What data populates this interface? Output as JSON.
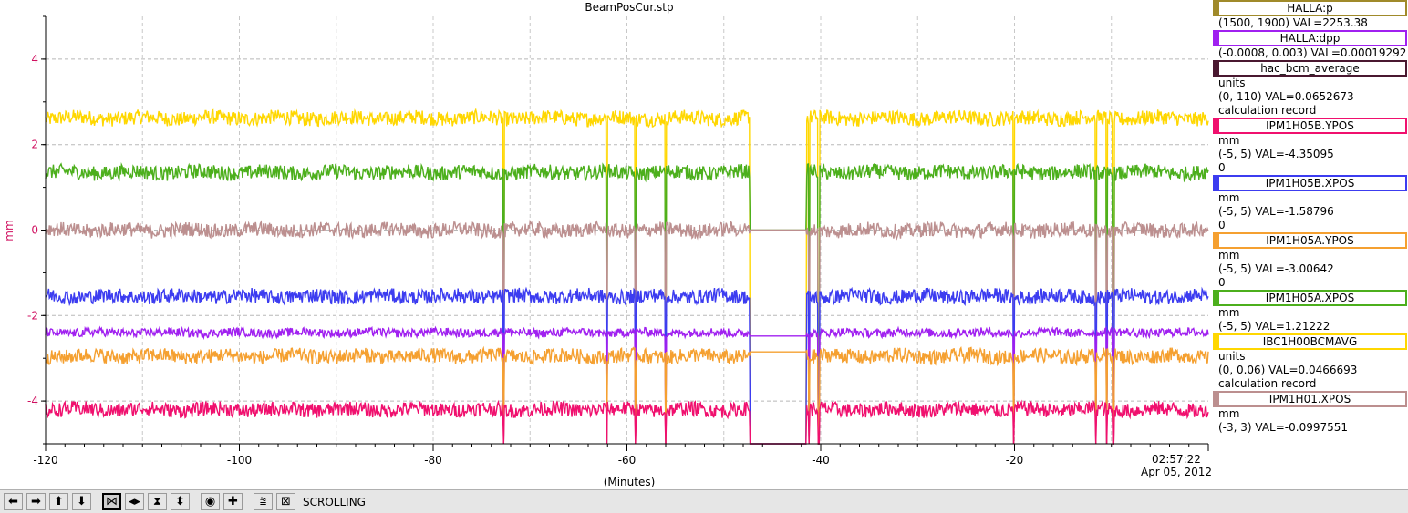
{
  "window_title": "BeamPosCur.stp",
  "chart_data": {
    "type": "line",
    "title": "BeamPosCur.stp",
    "xlabel": "(Minutes)",
    "ylabel": "mm",
    "xlim": [
      -120,
      0
    ],
    "ylim": [
      -5,
      5
    ],
    "x_ticks": [
      "-120",
      "-100",
      "-80",
      "-60",
      "-40",
      "-20"
    ],
    "y_ticks": [
      "4",
      "2",
      "0",
      "-2",
      "-4"
    ],
    "y_tick_values": [
      4,
      2,
      0,
      -2,
      -4
    ],
    "x_tick_values": [
      -120,
      -100,
      -80,
      -60,
      -40,
      -20
    ],
    "time_label": "02:57:22",
    "date_label": "Apr 05, 2012",
    "grid": true,
    "gaps": [
      [
        -47.3,
        -41.5
      ]
    ],
    "dropouts": [
      -72.7,
      -62.1,
      -59.1,
      -56.0,
      -41.2,
      -40.2,
      -20.1,
      -11.6,
      -10.5,
      -9.8
    ],
    "series": [
      {
        "name": "IBC1H00BCMAVG",
        "color": "#ffd700",
        "mean": 2.62,
        "noise": 0.1
      },
      {
        "name": "IPM1H05A.XPOS",
        "color": "#4caf1c",
        "mean": 1.35,
        "noise": 0.1
      },
      {
        "name": "IPM1H01.XPOS",
        "color": "#bc8f8f",
        "mean": 0.0,
        "noise": 0.1
      },
      {
        "name": "IPM1H05B.XPOS",
        "color": "#3c3cf0",
        "mean": -1.55,
        "noise": 0.1
      },
      {
        "name": "HALLA:dpp",
        "color": "#a020f0",
        "mean": -2.4,
        "noise": 0.06
      },
      {
        "name": "IPM1H05A.YPOS",
        "color": "#f5a030",
        "mean": -2.95,
        "noise": 0.1
      },
      {
        "name": "IPM1H05B.YPOS",
        "color": "#f0106e",
        "mean": -4.2,
        "noise": 0.1
      }
    ]
  },
  "legend": [
    {
      "label": "HALLA:p",
      "color": "#a08a2a",
      "lines": [
        "(1500, 1900) VAL=2253.38"
      ]
    },
    {
      "label": "HALLA:dpp",
      "color": "#a020f0",
      "lines": [
        "(-0.0008, 0.003) VAL=0.00019292"
      ]
    },
    {
      "label": "hac_bcm_average",
      "color": "#4a1830",
      "lines": [
        "units",
        "(0, 110) VAL=0.0652673",
        "calculation record"
      ]
    },
    {
      "label": "IPM1H05B.YPOS",
      "color": "#f0106e",
      "lines": [
        "mm",
        "(-5, 5) VAL=-4.35095",
        "0"
      ]
    },
    {
      "label": "IPM1H05B.XPOS",
      "color": "#3c3cf0",
      "lines": [
        "mm",
        "(-5, 5) VAL=-1.58796",
        "0"
      ]
    },
    {
      "label": "IPM1H05A.YPOS",
      "color": "#f5a030",
      "lines": [
        "mm",
        "(-5, 5) VAL=-3.00642",
        "0"
      ]
    },
    {
      "label": "IPM1H05A.XPOS",
      "color": "#4caf1c",
      "lines": [
        "mm",
        "(-5, 5) VAL=1.21222"
      ]
    },
    {
      "label": "IBC1H00BCMAVG",
      "color": "#ffd700",
      "lines": [
        "units",
        "(0, 0.06) VAL=0.0466693",
        "calculation record"
      ]
    },
    {
      "label": "IPM1H01.XPOS",
      "color": "#bc8f8f",
      "lines": [
        "mm",
        "(-3, 3) VAL=-0.0997551"
      ]
    }
  ],
  "toolbar": {
    "status": "SCROLLING",
    "buttons": [
      {
        "icon": "arrow-left-icon",
        "glyph": "⬅"
      },
      {
        "icon": "arrow-right-icon",
        "glyph": "➡"
      },
      {
        "icon": "arrow-up-icon",
        "glyph": "⬆"
      },
      {
        "icon": "arrow-down-icon",
        "glyph": "⬇"
      },
      {
        "icon": "zoom-in-both-icon",
        "glyph": "⋈",
        "selected": true
      },
      {
        "icon": "zoom-horizontal-icon",
        "glyph": "◂▸"
      },
      {
        "icon": "zoom-vertical-icon",
        "glyph": "⧗"
      },
      {
        "icon": "expand-vertical-icon",
        "glyph": "⬍"
      },
      {
        "icon": "record-icon",
        "glyph": "◉"
      },
      {
        "icon": "plus-icon",
        "glyph": "✚"
      },
      {
        "icon": "autoscale-icon",
        "glyph": "⩰"
      },
      {
        "icon": "fit-icon",
        "glyph": "⊠"
      }
    ]
  }
}
